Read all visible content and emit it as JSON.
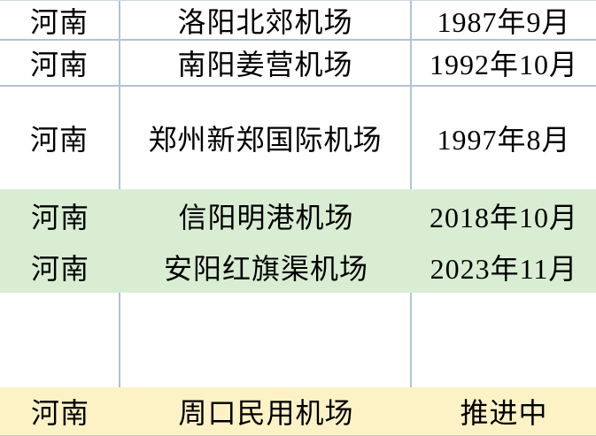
{
  "theme": {
    "highlight_green": "#d9edd3",
    "highlight_yellow": "#fdf2c6",
    "grid": "#b4c2d2",
    "text": "#000000",
    "background": "#ffffff"
  },
  "table": {
    "columns": [
      "province",
      "airport",
      "date"
    ],
    "rows": [
      {
        "province": "河南",
        "airport": "洛阳北郊机场",
        "date": "1987年9月",
        "highlight": "none"
      },
      {
        "province": "河南",
        "airport": "南阳姜营机场",
        "date": "1992年10月",
        "highlight": "none"
      },
      {
        "province": "河南",
        "airport": "郑州新郑国际机场",
        "date": "1997年8月",
        "highlight": "none"
      },
      {
        "province": "河南",
        "airport": "信阳明港机场",
        "date": "2018年10月",
        "highlight": "green"
      },
      {
        "province": "河南",
        "airport": "安阳红旗渠机场",
        "date": "2023年11月",
        "highlight": "green"
      },
      {
        "province": "",
        "airport": "",
        "date": "",
        "highlight": "none"
      },
      {
        "province": "河南",
        "airport": "周口民用机场",
        "date": "推进中",
        "highlight": "yellow"
      }
    ]
  }
}
